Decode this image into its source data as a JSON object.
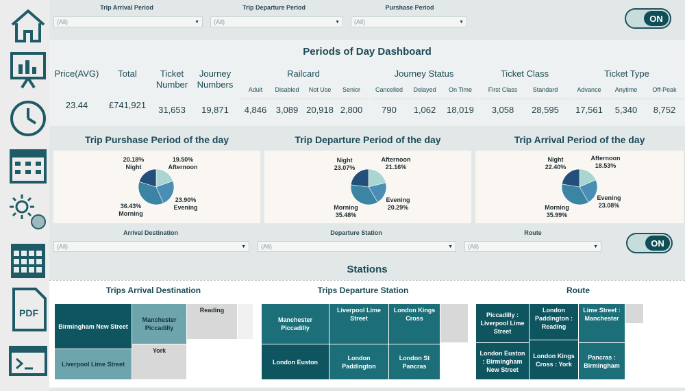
{
  "filters_top": [
    {
      "label": "Trip Arrival Period",
      "value": "(All)"
    },
    {
      "label": "Trip Departure Period",
      "value": "(All)"
    },
    {
      "label": "Purshase Period",
      "value": "(All)"
    }
  ],
  "filters_bottom": [
    {
      "label": "Arrival Destination",
      "value": "(All)"
    },
    {
      "label": "Departure Station",
      "value": "(All)"
    },
    {
      "label": "Route",
      "value": "(All)"
    }
  ],
  "toggle_label": "ON",
  "dashboard_title": "Periods of Day Dashboard",
  "kpis": {
    "price_label": "Price(AVG)",
    "price_value": "23.44",
    "total_label": "Total",
    "total_value": "£741,921",
    "ticket_label": "Ticket Number",
    "ticket_value": "31,653",
    "journey_label": "Journey Numbers",
    "journey_value": "19,871",
    "railcard": {
      "title": "Railcard",
      "items": [
        {
          "label": "Adult",
          "value": "4,846"
        },
        {
          "label": "Disabled",
          "value": "3,089"
        },
        {
          "label": "Not Use",
          "value": "20,918"
        },
        {
          "label": "Senior",
          "value": "2,800"
        }
      ]
    },
    "journey_status": {
      "title": "Journey Status",
      "items": [
        {
          "label": "Cancelled",
          "value": "790"
        },
        {
          "label": "Delayed",
          "value": "1,062"
        },
        {
          "label": "On Time",
          "value": "18,019"
        }
      ]
    },
    "ticket_class": {
      "title": "Ticket Class",
      "items": [
        {
          "label": "First Class",
          "value": "3,058"
        },
        {
          "label": "Standard",
          "value": "28,595"
        }
      ]
    },
    "ticket_type": {
      "title": "Ticket Type",
      "items": [
        {
          "label": "Advance",
          "value": "17,561"
        },
        {
          "label": "Anytime",
          "value": "5,340"
        },
        {
          "label": "Off-Peak",
          "value": "8,752"
        }
      ]
    }
  },
  "chart_data": [
    {
      "type": "pie",
      "title": "Trip Purshase Period of the day",
      "categories": [
        "Afternoon",
        "Evening",
        "Morning",
        "Night"
      ],
      "values": [
        19.5,
        23.9,
        36.43,
        20.18
      ],
      "labels": [
        "19.50%",
        "23.90%",
        "36.43%",
        "20.18%"
      ]
    },
    {
      "type": "pie",
      "title": "Trip Departure Period of the day",
      "categories": [
        "Afternoon",
        "Evening",
        "Morning",
        "Night"
      ],
      "values": [
        21.16,
        20.29,
        35.48,
        23.07
      ],
      "labels": [
        "21.16%",
        "20.29%",
        "35.48%",
        "23.07%"
      ]
    },
    {
      "type": "pie",
      "title": "Trip Arrival Period of the day",
      "categories": [
        "Afternoon",
        "Evening",
        "Morning",
        "Night"
      ],
      "values": [
        18.53,
        23.08,
        35.99,
        22.4
      ],
      "labels": [
        "18.53%",
        "23.08%",
        "35.99%",
        "22.40%"
      ]
    }
  ],
  "pie_colors": [
    "#a9d6d1",
    "#4a8fb3",
    "#3b84a3",
    "#234f7a"
  ],
  "stations_title": "Stations",
  "treemaps": {
    "arrival": {
      "title": "Trips Arrival Destination",
      "cells": [
        "Birmingham New Street",
        "Manchester Piccadilly",
        "Reading",
        "Liverpool Lime Street",
        "York"
      ]
    },
    "departure": {
      "title": "Trips Departure Station",
      "cells": [
        "Manchester Piccadilly",
        "Liverpool Lime Street",
        "London Kings Cross",
        "London Euston",
        "London Paddington",
        "London St Pancras"
      ]
    },
    "route": {
      "title": "Route",
      "cells": [
        "Piccadilly : Liverpool Lime Street",
        "London Paddington : Reading",
        "Lime Street : Manchester",
        "London Euston : Birmingham New Street",
        "London Kings Cross : York",
        "Pancras : Birmingham"
      ]
    }
  },
  "sidebar_icons": [
    "home-icon",
    "chart-board-icon",
    "clock-icon",
    "calendar-icon",
    "sun-moon-icon",
    "grid-calendar-icon",
    "pdf-icon",
    "terminal-icon"
  ],
  "pdf_text": "PDF"
}
